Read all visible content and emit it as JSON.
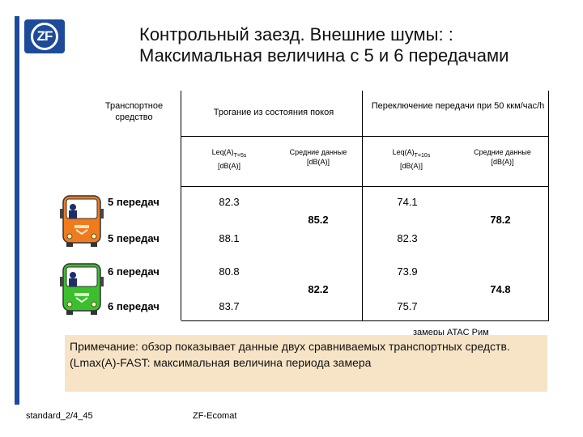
{
  "logo_text": "ZF",
  "title": "Контрольный заезд. Внешние шумы: : Максимальная величина с 5 и 6 передачами",
  "table": {
    "col_vehicle": "Транспортное средство",
    "col_start": "Трогание из состояния покоя",
    "col_shift": "Переключение передачи при 50 ккм/час/h",
    "sub_leq_start_main": "Leq(A)",
    "sub_leq_start_sub": "T=5s",
    "sub_leq_shift_main": "Leq(A)",
    "sub_leq_shift_sub": "T=10s",
    "sub_unit": "[dB(A)]",
    "sub_avg": "Средние данные",
    "rows": [
      {
        "label": "5 передач",
        "start": "82.3",
        "shift": "74.1"
      },
      {
        "label": "5 передач",
        "start": "88.1",
        "shift": "82.3"
      },
      {
        "label": "6 передач",
        "start": "80.8",
        "shift": "73.9"
      },
      {
        "label": "6 передач",
        "start": "83.7",
        "shift": "75.7"
      }
    ],
    "avg_group1_start": "85.2",
    "avg_group1_shift": "78.2",
    "avg_group2_start": "82.2",
    "avg_group2_shift": "74.8"
  },
  "measure_note": "замеры ATAC Рим",
  "note": {
    "line1": "Примечание: обзор показывает данные двух сравниваемых транспортных средств.",
    "line2": "(Lmax(A)-FAST: максимальная величина периода замера"
  },
  "footer_left": "standard_2/4_45",
  "footer_center": "ZF-Ecomat",
  "colors": {
    "zf_blue": "#1d4b9a",
    "bus_orange": "#f07b1e",
    "bus_green": "#3bbf2f",
    "note_bg": "#f7e4c7"
  }
}
